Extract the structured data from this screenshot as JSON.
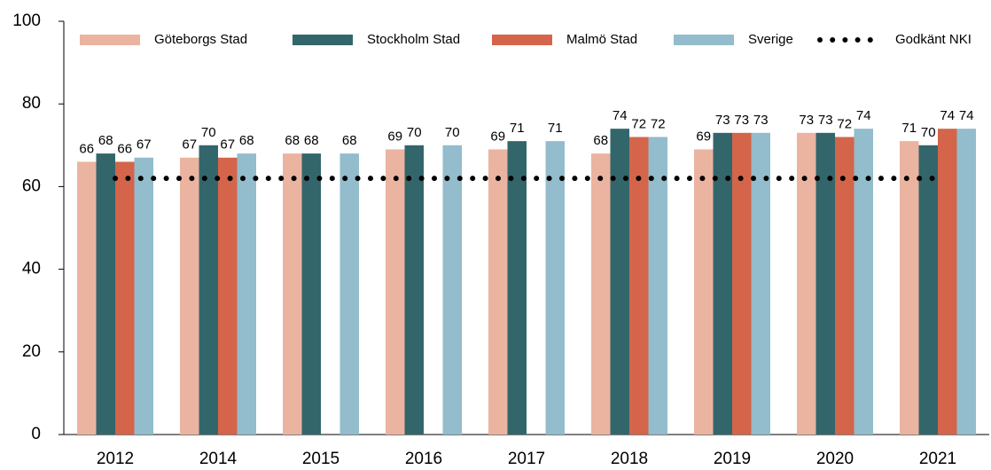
{
  "chart_data": {
    "type": "bar",
    "categories": [
      "2012",
      "2014",
      "2015",
      "2016",
      "2017",
      "2018",
      "2019",
      "2020",
      "2021"
    ],
    "series": [
      {
        "name": "Göteborgs Stad",
        "color": "#ebb4a0",
        "values": [
          66,
          67,
          68,
          69,
          69,
          68,
          69,
          73,
          71
        ]
      },
      {
        "name": "Stockholm Stad",
        "color": "#33666b",
        "values": [
          68,
          70,
          68,
          70,
          71,
          74,
          73,
          73,
          70
        ]
      },
      {
        "name": "Malmö Stad",
        "color": "#d4654a",
        "values": [
          66,
          67,
          null,
          null,
          null,
          72,
          73,
          72,
          74
        ]
      },
      {
        "name": "Sverige",
        "color": "#93bccc",
        "values": [
          67,
          68,
          68,
          70,
          71,
          72,
          73,
          74,
          74
        ]
      }
    ],
    "reference_line": {
      "name": "Godkänt NKI",
      "value": 62,
      "color": "#000000"
    },
    "ylim": [
      0,
      100
    ],
    "yticks": [
      0,
      20,
      40,
      60,
      80,
      100
    ],
    "grid": false
  }
}
